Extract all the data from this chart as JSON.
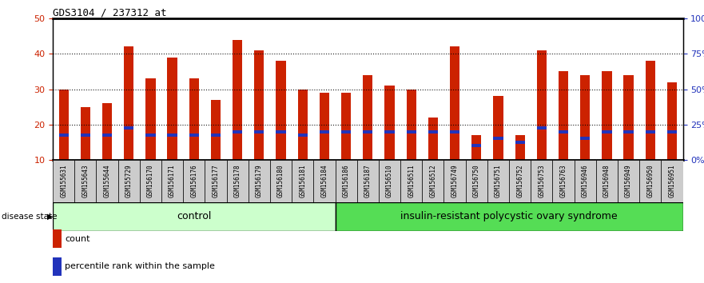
{
  "title": "GDS3104 / 237312_at",
  "samples": [
    "GSM155631",
    "GSM155643",
    "GSM155644",
    "GSM155729",
    "GSM156170",
    "GSM156171",
    "GSM156176",
    "GSM156177",
    "GSM156178",
    "GSM156179",
    "GSM156180",
    "GSM156181",
    "GSM156184",
    "GSM156186",
    "GSM156187",
    "GSM156510",
    "GSM156511",
    "GSM156512",
    "GSM156749",
    "GSM156750",
    "GSM156751",
    "GSM156752",
    "GSM156753",
    "GSM156763",
    "GSM156946",
    "GSM156948",
    "GSM156949",
    "GSM156950",
    "GSM156951"
  ],
  "counts": [
    30,
    25,
    26,
    42,
    33,
    39,
    33,
    27,
    44,
    41,
    38,
    30,
    29,
    29,
    34,
    31,
    30,
    22,
    42,
    17,
    28,
    17,
    41,
    35,
    34,
    35,
    34,
    38,
    32
  ],
  "percentile_vals": [
    17,
    17,
    17,
    19,
    17,
    17,
    17,
    17,
    18,
    18,
    18,
    17,
    18,
    18,
    18,
    18,
    18,
    18,
    18,
    14,
    16,
    15,
    19,
    18,
    16,
    18,
    18,
    18,
    18
  ],
  "control_count": 13,
  "disease_count": 16,
  "ylim_left": [
    10,
    50
  ],
  "ylim_right": [
    0,
    100
  ],
  "yticks_left": [
    10,
    20,
    30,
    40,
    50
  ],
  "bar_color": "#cc2200",
  "percentile_color": "#2233bb",
  "control_bg": "#ccffcc",
  "disease_bg": "#55dd55",
  "label_bg": "#cccccc",
  "control_label": "control",
  "disease_label": "insulin-resistant polycystic ovary syndrome",
  "disease_state_label": "disease state",
  "legend_count_label": "count",
  "legend_pct_label": "percentile rank within the sample",
  "bar_width": 0.45
}
